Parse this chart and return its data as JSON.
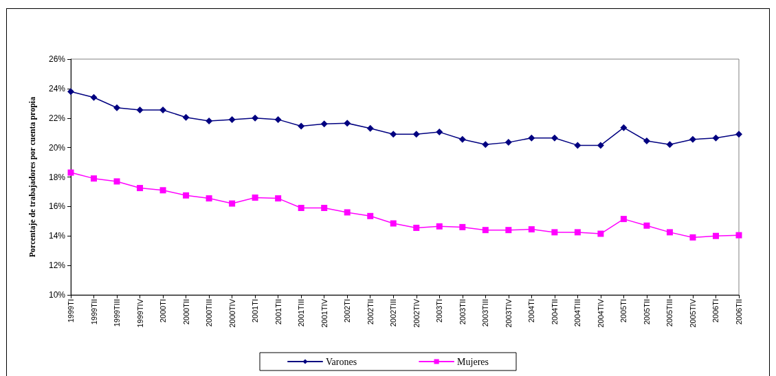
{
  "chart_data": {
    "type": "line",
    "ylabel": "Porcentaje de trabajadores por cuenta propia",
    "categories": [
      "1999TI",
      "1999TII",
      "1999TIII",
      "1999TIV",
      "2000TI",
      "2000TII",
      "2000TIII",
      "2000TIV",
      "2001TI",
      "2001TII",
      "2001TIII",
      "2001TIV",
      "2002TI",
      "2002TII",
      "2002TIII",
      "2002TIV",
      "2003TI",
      "2003TII",
      "2003TIII",
      "2003TIV",
      "2004TI",
      "2004TII",
      "2004TIII",
      "2004TIV",
      "2005TI",
      "2005TII",
      "2005TIII",
      "2005TIV",
      "2006TI",
      "2006TII"
    ],
    "series": [
      {
        "name": "Varones",
        "color": "#000080",
        "marker": "diamond",
        "values": [
          23.8,
          23.4,
          22.7,
          22.55,
          22.55,
          22.05,
          21.8,
          21.9,
          22.0,
          21.9,
          21.45,
          21.6,
          21.65,
          21.3,
          20.9,
          20.9,
          21.05,
          20.55,
          20.2,
          20.35,
          20.65,
          20.65,
          20.15,
          20.15,
          21.35,
          20.45,
          20.2,
          20.55,
          20.65,
          20.9
        ]
      },
      {
        "name": "Mujeres",
        "color": "#ff00ff",
        "marker": "square",
        "values": [
          18.3,
          17.9,
          17.7,
          17.25,
          17.1,
          16.75,
          16.55,
          16.2,
          16.6,
          16.55,
          15.9,
          15.9,
          15.6,
          15.35,
          14.85,
          14.55,
          14.65,
          14.6,
          14.4,
          14.4,
          14.45,
          14.25,
          14.25,
          14.15,
          15.15,
          14.7,
          14.25,
          13.9,
          14.0,
          14.05
        ]
      }
    ],
    "ylim": [
      10,
      26
    ],
    "yticks": [
      {
        "value": 10,
        "label": "10%"
      },
      {
        "value": 12,
        "label": "12%"
      },
      {
        "value": 14,
        "label": "14%"
      },
      {
        "value": 16,
        "label": "16%"
      },
      {
        "value": 18,
        "label": "18%"
      },
      {
        "value": 20,
        "label": "20%"
      },
      {
        "value": 22,
        "label": "22%"
      },
      {
        "value": 24,
        "label": "24%"
      },
      {
        "value": 26,
        "label": "26%"
      }
    ],
    "grid": false,
    "legend": "bottom",
    "line_style": "solid"
  }
}
